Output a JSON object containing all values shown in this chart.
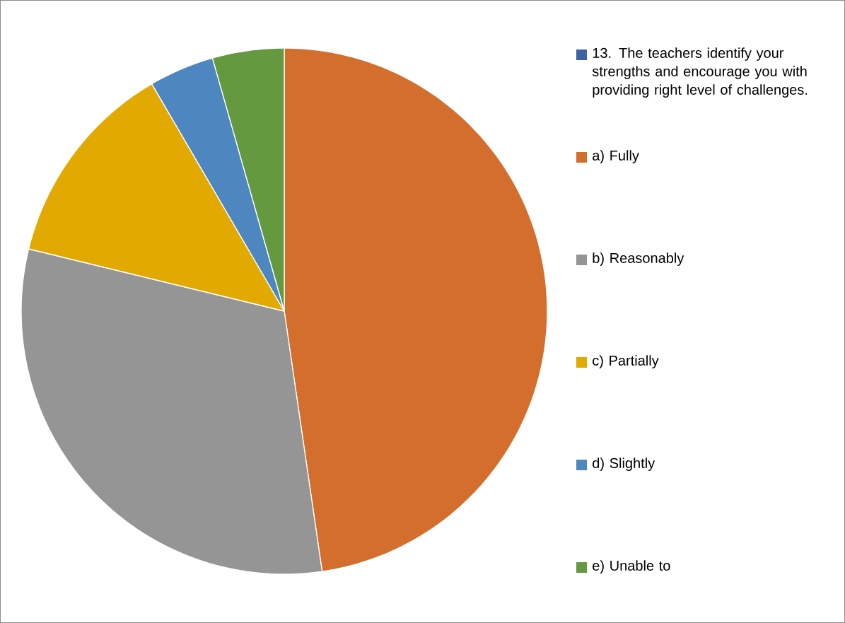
{
  "chart_data": {
    "type": "pie",
    "categories": [
      "13. The teachers identify your strengths and encourage you with providing right level of challenges.",
      "a)  Fully",
      "b)  Reasonably",
      "c)  Partially",
      "d)  Slightly",
      "e)  Unable to"
    ],
    "values": [
      0,
      47.7,
      31.1,
      12.8,
      4.0,
      4.4
    ],
    "colors": [
      "#3c62a8",
      "#d46e2c",
      "#959595",
      "#e2aa00",
      "#4e87c0",
      "#64993f"
    ],
    "legend": "right"
  }
}
